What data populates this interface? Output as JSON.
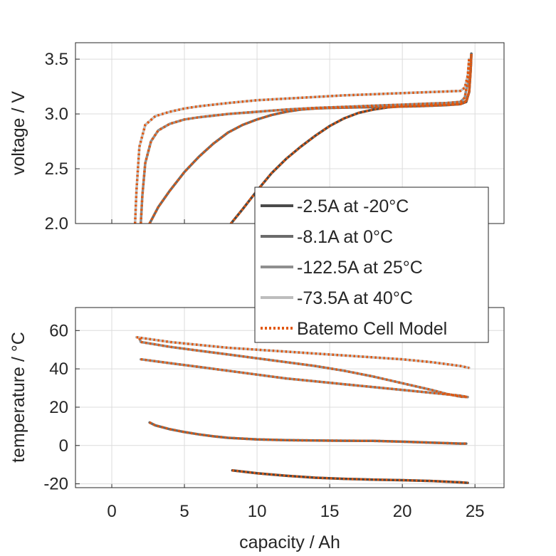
{
  "chart_data": [
    {
      "type": "line",
      "title": "",
      "xlabel": "",
      "ylabel": "voltage / V",
      "xlim": [
        -2.5,
        27
      ],
      "ylim": [
        2.0,
        3.65
      ],
      "xticks": [
        "0",
        "5",
        "10",
        "15",
        "20",
        "25"
      ],
      "xtick_values": [
        0,
        5,
        10,
        15,
        20,
        25
      ],
      "yticks": [
        "2.0",
        "2.5",
        "3.0",
        "3.5"
      ],
      "ytick_values": [
        2.0,
        2.5,
        3.0,
        3.5
      ],
      "grid": true,
      "legend_position": "bottom-right",
      "series": [
        {
          "name": "-2.5A at -20°C",
          "color": "#4a4a4a",
          "style": "solid",
          "x": [
            8.2,
            9.0,
            10.0,
            11.0,
            12.0,
            13.0,
            14.0,
            15.0,
            16.0,
            17.0,
            18.0,
            19.0,
            20.0,
            21.0,
            22.0,
            23.0,
            24.0,
            24.4,
            24.6,
            24.7,
            24.75
          ],
          "y": [
            2.0,
            2.13,
            2.3,
            2.46,
            2.59,
            2.7,
            2.8,
            2.89,
            2.96,
            3.01,
            3.04,
            3.06,
            3.07,
            3.075,
            3.08,
            3.085,
            3.09,
            3.11,
            3.2,
            3.4,
            3.55
          ]
        },
        {
          "name": "-8.1A at 0°C",
          "color": "#6b6b6b",
          "style": "solid",
          "x": [
            2.6,
            2.8,
            3.2,
            4.0,
            5.0,
            6.0,
            7.0,
            8.0,
            9.0,
            10.0,
            11.0,
            12.0,
            13.0,
            14.0,
            15.0,
            17.0,
            19.0,
            21.0,
            23.0,
            24.0,
            24.4,
            24.6,
            24.7,
            24.75
          ],
          "y": [
            2.0,
            2.05,
            2.15,
            2.3,
            2.47,
            2.61,
            2.73,
            2.83,
            2.9,
            2.95,
            2.99,
            3.02,
            3.04,
            3.05,
            3.055,
            3.06,
            3.065,
            3.07,
            3.08,
            3.09,
            3.12,
            3.2,
            3.4,
            3.55
          ]
        },
        {
          "name": "-122.5A at 25°C",
          "color": "#8f8f8f",
          "style": "solid",
          "x": [
            2.0,
            2.1,
            2.3,
            2.7,
            3.2,
            4.0,
            5.0,
            6.0,
            8.0,
            10.0,
            12.0,
            14.0,
            16.0,
            18.0,
            20.0,
            22.0,
            23.0,
            24.0,
            24.3,
            24.5,
            24.6
          ],
          "y": [
            2.0,
            2.25,
            2.55,
            2.75,
            2.85,
            2.91,
            2.95,
            2.97,
            3.0,
            3.02,
            3.04,
            3.055,
            3.065,
            3.075,
            3.085,
            3.095,
            3.1,
            3.11,
            3.15,
            3.3,
            3.5
          ]
        },
        {
          "name": "-73.5A at 40°C",
          "color": "#bdbdbd",
          "style": "solid",
          "x": [
            1.6,
            1.7,
            1.9,
            2.3,
            3.0,
            4.0,
            5.0,
            6.0,
            8.0,
            10.0,
            12.0,
            14.0,
            16.0,
            18.0,
            20.0,
            22.0,
            23.0,
            24.0,
            24.3,
            24.5,
            24.6
          ],
          "y": [
            2.0,
            2.3,
            2.7,
            2.9,
            2.98,
            3.02,
            3.05,
            3.07,
            3.1,
            3.125,
            3.14,
            3.155,
            3.17,
            3.18,
            3.19,
            3.2,
            3.205,
            3.21,
            3.24,
            3.35,
            3.5
          ]
        }
      ],
      "model": {
        "name": "Batemo Cell Model",
        "color": "#e2570e",
        "style": "dotted"
      }
    },
    {
      "type": "line",
      "title": "",
      "xlabel": "capacity / Ah",
      "ylabel": "temperature / °C",
      "xlim": [
        -2.5,
        27
      ],
      "ylim": [
        -22,
        72
      ],
      "xticks": [
        "0",
        "5",
        "10",
        "15",
        "20",
        "25"
      ],
      "xtick_values": [
        0,
        5,
        10,
        15,
        20,
        25
      ],
      "yticks": [
        "-20",
        "0",
        "20",
        "40",
        "60"
      ],
      "ytick_values": [
        -20,
        0,
        20,
        40,
        60
      ],
      "grid": true,
      "series": [
        {
          "name": "-2.5A at -20°C",
          "color": "#4a4a4a",
          "style": "solid",
          "x": [
            8.3,
            10.0,
            12.0,
            14.0,
            16.0,
            18.0,
            20.0,
            22.0,
            24.0,
            24.5
          ],
          "y": [
            -13.0,
            -14.5,
            -15.8,
            -16.8,
            -17.4,
            -17.8,
            -18.1,
            -18.5,
            -19.2,
            -19.5
          ]
        },
        {
          "name": "-8.1A at 0°C",
          "color": "#6b6b6b",
          "style": "solid",
          "x": [
            2.6,
            3.0,
            4.0,
            5.0,
            6.0,
            7.0,
            8.0,
            10.0,
            12.0,
            14.0,
            16.0,
            18.0,
            20.0,
            22.0,
            24.0,
            24.4
          ],
          "y": [
            12.0,
            10.5,
            8.5,
            7.0,
            5.8,
            4.8,
            4.0,
            3.2,
            2.8,
            2.6,
            2.5,
            2.4,
            2.0,
            1.5,
            1.0,
            1.0
          ]
        },
        {
          "name": "-122.5A at 25°C",
          "color": "#8f8f8f",
          "style": "solid",
          "x": [
            1.9,
            2.0,
            4.0,
            6.0,
            8.0,
            10.0,
            12.0,
            14.0,
            16.0,
            18.0,
            20.0,
            22.0,
            23.0,
            24.0,
            24.5
          ],
          "y": [
            56.0,
            54.0,
            51.5,
            49.5,
            47.5,
            45.5,
            43.5,
            41.5,
            39.0,
            36.0,
            32.5,
            29.0,
            27.0,
            25.5,
            25.3
          ]
        },
        {
          "name": "-122.5A at 25°C (band)",
          "color": "#8f8f8f",
          "style": "solid",
          "x": [
            2.0,
            4.0,
            6.0,
            8.0,
            10.0,
            12.0,
            14.0,
            16.0,
            18.0,
            20.0,
            22.0,
            24.0,
            24.5
          ],
          "y": [
            45.0,
            43.0,
            41.0,
            39.0,
            37.0,
            35.0,
            33.5,
            32.0,
            30.5,
            29.0,
            27.5,
            26.0,
            25.3
          ]
        },
        {
          "name": "-73.5A at 40°C",
          "color": "#bdbdbd",
          "style": "solid",
          "x": [
            1.7,
            4.0,
            6.0,
            8.0,
            10.0,
            12.0,
            14.0,
            16.0,
            18.0,
            20.0,
            22.0,
            24.0,
            24.6
          ],
          "y": [
            56.5,
            54.0,
            52.5,
            51.0,
            50.0,
            49.0,
            48.0,
            47.0,
            46.0,
            45.0,
            43.5,
            41.5,
            40.5
          ]
        }
      ],
      "model": {
        "name": "Batemo Cell Model",
        "color": "#e2570e",
        "style": "dotted"
      }
    }
  ],
  "legend": [
    {
      "label": "-2.5A at -20°C",
      "color": "#4a4a4a",
      "style": "solid"
    },
    {
      "label": "-8.1A at 0°C",
      "color": "#6b6b6b",
      "style": "solid"
    },
    {
      "label": "-122.5A at 25°C",
      "color": "#8f8f8f",
      "style": "solid"
    },
    {
      "label": "-73.5A at 40°C",
      "color": "#bdbdbd",
      "style": "solid"
    },
    {
      "label": "Batemo Cell Model",
      "color": "#e2570e",
      "style": "dotted"
    }
  ]
}
